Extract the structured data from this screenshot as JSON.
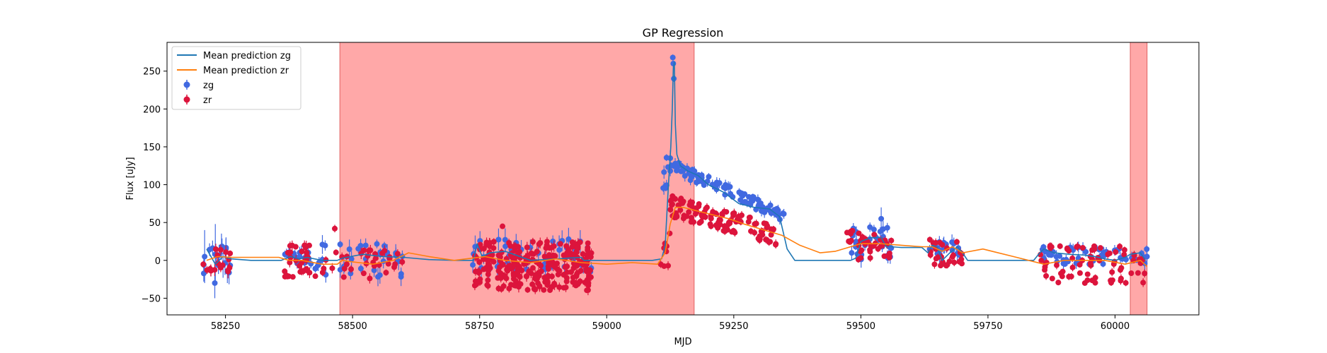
{
  "chart_data": {
    "type": "scatter",
    "title": "GP Regression",
    "xlabel": "MJD",
    "ylabel": "Flux [uJy]",
    "xlim": [
      58135,
      60165
    ],
    "ylim": [
      -72,
      288
    ],
    "xticks": [
      58250,
      58500,
      58750,
      59000,
      59250,
      59500,
      59750,
      60000
    ],
    "yticks": [
      -50,
      0,
      50,
      100,
      150,
      200,
      250
    ],
    "grid": false,
    "legend_placement": "top-left",
    "shaded_regions": [
      {
        "x0": 58475,
        "x1": 59172,
        "color": "#ff9999"
      },
      {
        "x0": 60030,
        "x1": 60063,
        "color": "#ff9999"
      }
    ],
    "colors": {
      "zg_line": "#1f77b4",
      "zr_line": "#ff7f0e",
      "zg_points": "#4169e1",
      "zr_points": "#dc143c"
    },
    "lines": [
      {
        "name": "Mean prediction zg",
        "color": "#1f77b4",
        "x": [
          58213,
          58230,
          58245,
          58262,
          58300,
          58360,
          58378,
          58395,
          58410,
          58440,
          58470,
          58480,
          58520,
          58560,
          58600,
          58650,
          58700,
          58738,
          58745,
          58755,
          58770,
          58800,
          58850,
          58900,
          58950,
          58955,
          58970,
          59000,
          59050,
          59090,
          59108,
          59115,
          59121,
          59126,
          59129,
          59131,
          59133,
          59135,
          59138,
          59145,
          59160,
          59180,
          59200,
          59230,
          59260,
          59290,
          59320,
          59340,
          59355,
          59370,
          59400,
          59450,
          59480,
          59490,
          59500,
          59520,
          59540,
          59550,
          59560,
          59580,
          59620,
          59632,
          59640,
          59650,
          59660,
          59675,
          59690,
          59700,
          59710,
          59730,
          59800,
          59840,
          59852,
          59860,
          59880,
          59910,
          59940,
          59960,
          59980,
          60000,
          60020,
          60030,
          60050,
          60060
        ],
        "y": [
          15,
          -5,
          5,
          2,
          0,
          0,
          5,
          2,
          4,
          0,
          0,
          3,
          8,
          5,
          4,
          1,
          0,
          0,
          22,
          5,
          10,
          12,
          0,
          2,
          4,
          0,
          0,
          0,
          0,
          0,
          2,
          20,
          95,
          150,
          200,
          255,
          262,
          180,
          140,
          125,
          118,
          112,
          100,
          90,
          75,
          70,
          68,
          58,
          15,
          0,
          0,
          0,
          0,
          3,
          25,
          30,
          30,
          18,
          18,
          17,
          17,
          10,
          20,
          18,
          0,
          10,
          18,
          10,
          0,
          0,
          0,
          0,
          10,
          15,
          10,
          8,
          7,
          5,
          2,
          0,
          4,
          8,
          10,
          0
        ]
      },
      {
        "name": "Mean prediction zr",
        "color": "#ff7f0e",
        "x": [
          58213,
          58235,
          58260,
          58300,
          58355,
          58375,
          58400,
          58440,
          58470,
          58480,
          58500,
          58540,
          58580,
          58610,
          58650,
          58700,
          58760,
          58800,
          58850,
          58900,
          58950,
          59000,
          59050,
          59100,
          59115,
          59125,
          59135,
          59150,
          59180,
          59210,
          59240,
          59270,
          59310,
          59345,
          59380,
          59420,
          59450,
          59480,
          59500,
          59540,
          59580,
          59620,
          59640,
          59660,
          59680,
          59700,
          59740,
          59800,
          59860,
          59900,
          59940,
          59980,
          60020,
          60050,
          60063
        ],
        "y": [
          0,
          5,
          4,
          4,
          4,
          0,
          0,
          -5,
          -5,
          0,
          -2,
          -5,
          0,
          10,
          5,
          0,
          5,
          0,
          -3,
          2,
          -3,
          -5,
          -3,
          -5,
          10,
          48,
          70,
          70,
          65,
          60,
          55,
          48,
          40,
          33,
          20,
          10,
          12,
          18,
          22,
          22,
          20,
          18,
          18,
          12,
          18,
          10,
          15,
          5,
          -5,
          0,
          0,
          0,
          -5,
          0,
          -8
        ]
      }
    ],
    "series": [
      {
        "name": "zg",
        "color": "#4169e1"
      },
      {
        "name": "zr",
        "color": "#dc143c"
      }
    ],
    "scatter_groups": [
      {
        "series": "zg",
        "x0": 58205,
        "x1": 58265,
        "n": 16,
        "ymin": -20,
        "ymax": 25,
        "err": 12,
        "seed": 11
      },
      {
        "series": "zg",
        "x0": 58365,
        "x1": 58420,
        "n": 22,
        "ymin": -5,
        "ymax": 12,
        "err": 6,
        "seed": 12
      },
      {
        "series": "zg",
        "x0": 58425,
        "x1": 58600,
        "n": 35,
        "ymin": -22,
        "ymax": 25,
        "err": 9,
        "seed": 13
      },
      {
        "series": "zg",
        "x0": 58735,
        "x1": 58970,
        "n": 45,
        "ymin": -15,
        "ymax": 28,
        "err": 10,
        "seed": 14
      },
      {
        "series": "zg",
        "x0": 59111,
        "x1": 59118,
        "n": 6,
        "ymin": 95,
        "ymax": 140,
        "err": 6,
        "seed": 15
      },
      {
        "series": "zg",
        "x0": 59118,
        "x1": 59350,
        "n": 95,
        "ymin": 55,
        "ymax": 130,
        "err": 5,
        "seed": 16
      },
      {
        "series": "zg",
        "x0": 59475,
        "x1": 59560,
        "n": 28,
        "ymin": 0,
        "ymax": 45,
        "err": 8,
        "seed": 17
      },
      {
        "series": "zg",
        "x0": 59630,
        "x1": 59700,
        "n": 20,
        "ymin": 5,
        "ymax": 25,
        "err": 7,
        "seed": 18
      },
      {
        "series": "zg",
        "x0": 59850,
        "x1": 60065,
        "n": 55,
        "ymin": -5,
        "ymax": 18,
        "err": 6,
        "seed": 19
      },
      {
        "series": "zr",
        "x0": 58205,
        "x1": 58262,
        "n": 18,
        "ymin": -20,
        "ymax": 15,
        "err": 6,
        "seed": 21
      },
      {
        "series": "zr",
        "x0": 58365,
        "x1": 58420,
        "n": 32,
        "ymin": -22,
        "ymax": 20,
        "err": 5,
        "seed": 22
      },
      {
        "series": "zr",
        "x0": 58425,
        "x1": 58600,
        "n": 35,
        "ymin": -25,
        "ymax": 15,
        "err": 5,
        "seed": 23
      },
      {
        "series": "zr",
        "x0": 58740,
        "x1": 58970,
        "n": 260,
        "ymin": -40,
        "ymax": 25,
        "err": 5,
        "seed": 24
      },
      {
        "series": "zr",
        "x0": 59105,
        "x1": 59125,
        "n": 8,
        "ymin": -10,
        "ymax": 40,
        "err": 4,
        "seed": 25
      },
      {
        "series": "zr",
        "x0": 59125,
        "x1": 59340,
        "n": 120,
        "ymin": 20,
        "ymax": 90,
        "err": 4,
        "seed": 26
      },
      {
        "series": "zr",
        "x0": 59470,
        "x1": 59560,
        "n": 40,
        "ymin": 0,
        "ymax": 40,
        "err": 4,
        "seed": 27
      },
      {
        "series": "zr",
        "x0": 59635,
        "x1": 59700,
        "n": 28,
        "ymin": -10,
        "ymax": 30,
        "err": 4,
        "seed": 28
      },
      {
        "series": "zr",
        "x0": 59850,
        "x1": 60065,
        "n": 75,
        "ymin": -30,
        "ymax": 20,
        "err": 4,
        "seed": 29
      }
    ],
    "scatter_extra": [
      {
        "series": "zg",
        "x": 58229,
        "y": -30,
        "err": 20
      },
      {
        "series": "zg",
        "x": 58230,
        "y": 8,
        "err": 40
      },
      {
        "series": "zg",
        "x": 58209,
        "y": 5,
        "err": 35
      },
      {
        "series": "zg",
        "x": 59125,
        "y": 135,
        "err": 10
      },
      {
        "series": "zg",
        "x": 59130,
        "y": 268,
        "err": 4
      },
      {
        "series": "zg",
        "x": 59131,
        "y": 260,
        "err": 4
      },
      {
        "series": "zg",
        "x": 59132,
        "y": 240,
        "err": 4
      },
      {
        "series": "zg",
        "x": 59540,
        "y": 55,
        "err": 15
      },
      {
        "series": "zg",
        "x": 58925,
        "y": 28,
        "err": 15
      },
      {
        "series": "zr",
        "x": 58465,
        "y": 42,
        "err": 5
      },
      {
        "series": "zr",
        "x": 58795,
        "y": 45,
        "err": 3
      }
    ]
  }
}
